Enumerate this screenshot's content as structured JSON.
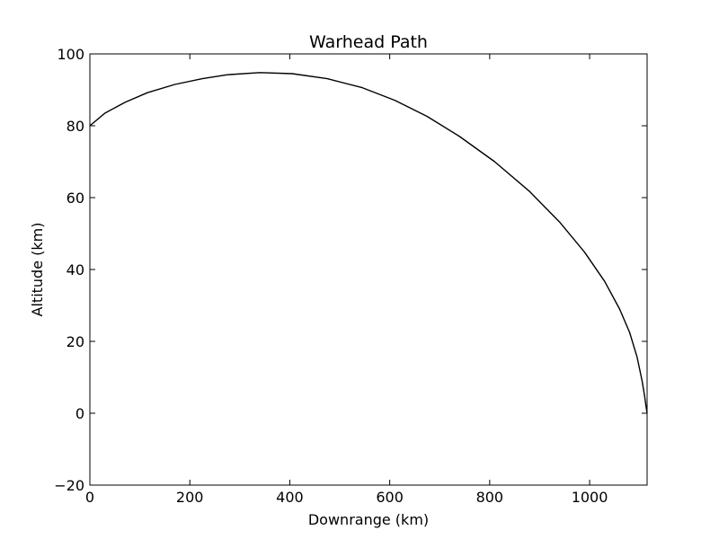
{
  "chart_data": {
    "type": "line",
    "title": "Warhead Path",
    "xlabel": "Downrange (km)",
    "ylabel": "Altitude (km)",
    "xlim": [
      0,
      1115
    ],
    "ylim": [
      -20,
      100
    ],
    "xticks": [
      0,
      200,
      400,
      600,
      800,
      1000
    ],
    "yticks": [
      -20,
      0,
      20,
      40,
      60,
      80,
      100
    ],
    "grid": false,
    "line_color": "#000000",
    "series": [
      {
        "x": [
          0,
          30,
          70,
          115,
          170,
          225,
          275,
          340,
          405,
          475,
          545,
          610,
          675,
          740,
          810,
          880,
          940,
          990,
          1030,
          1060,
          1080,
          1095,
          1105,
          1110,
          1113,
          1115
        ],
        "y": [
          80,
          83.5,
          86.5,
          89.2,
          91.5,
          93.1,
          94.2,
          94.8,
          94.5,
          93.1,
          90.6,
          87.1,
          82.6,
          77.0,
          70.0,
          61.7,
          53.2,
          44.8,
          36.7,
          29.0,
          22.5,
          15.6,
          9.0,
          4.8,
          1.8,
          0
        ]
      }
    ]
  }
}
